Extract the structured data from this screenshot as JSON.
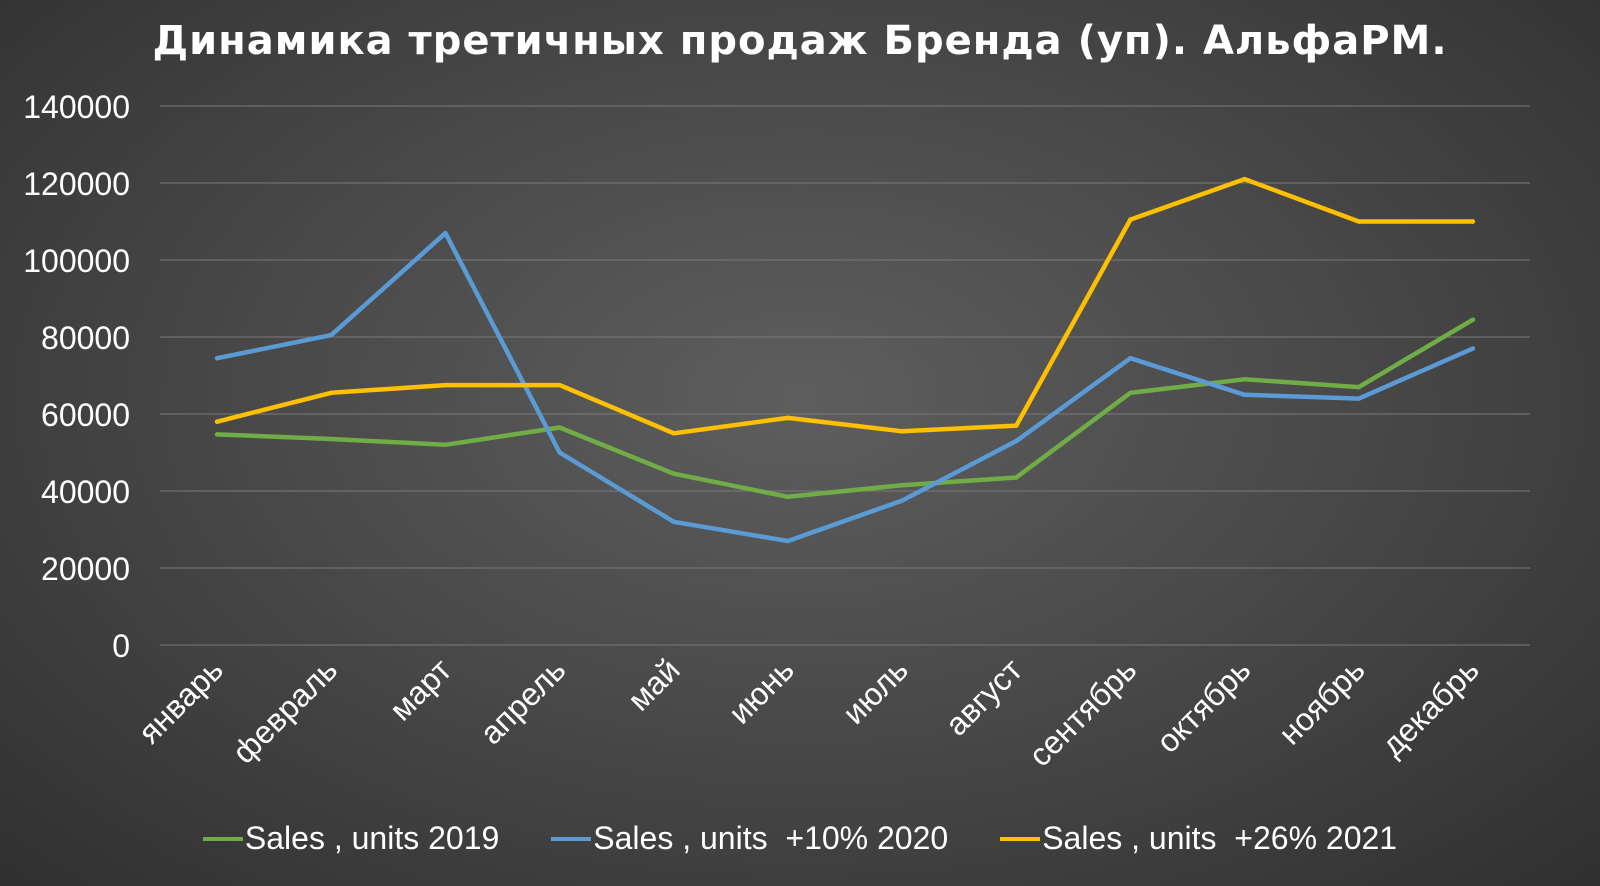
{
  "chart_data": {
    "type": "line",
    "title": "Динамика третичных продаж Бренда (уп). АльфаРМ.",
    "xlabel": "",
    "ylabel": "",
    "ylim": [
      0,
      140000
    ],
    "yticks": [
      0,
      20000,
      40000,
      60000,
      80000,
      100000,
      120000,
      140000
    ],
    "ytick_labels": [
      "0",
      "20000",
      "40000",
      "60000",
      "80000",
      "100000",
      "120000",
      "140000"
    ],
    "grid": true,
    "legend_position": "bottom",
    "categories": [
      "январь",
      "февраль",
      "март",
      "апрель",
      "май",
      "июнь",
      "июль",
      "август",
      "сентябрь",
      "октябрь",
      "ноябрь",
      "декабрь"
    ],
    "series": [
      {
        "name": "Sales , units 2019",
        "color": "#70ad47",
        "values": [
          54700,
          53500,
          52000,
          56500,
          44500,
          38500,
          41500,
          43500,
          65500,
          69000,
          67000,
          84500
        ]
      },
      {
        "name": "Sales , units  +10% 2020",
        "color": "#5b9bd5",
        "values": [
          74500,
          80500,
          107000,
          50000,
          32000,
          27000,
          37500,
          53000,
          74500,
          65000,
          64000,
          77000
        ]
      },
      {
        "name": "Sales , units  +26% 2021",
        "color": "#ffc000",
        "values": [
          58000,
          65500,
          67500,
          67500,
          55000,
          59000,
          55500,
          57000,
          110500,
          121000,
          110000,
          110000
        ]
      }
    ]
  }
}
